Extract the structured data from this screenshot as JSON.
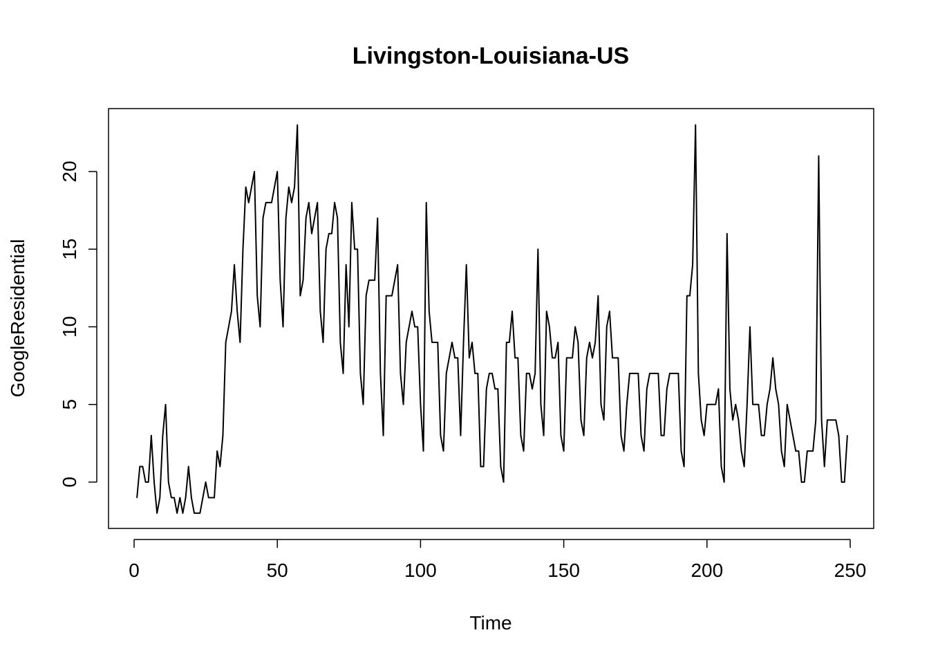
{
  "chart_data": {
    "type": "line",
    "title": "Livingston-Louisiana-US",
    "xlabel": "Time",
    "ylabel": "GoogleResidential",
    "xlim": [
      1,
      248
    ],
    "ylim": [
      -3,
      23
    ],
    "xticks": [
      0,
      50,
      100,
      150,
      200,
      250
    ],
    "yticks": [
      0,
      5,
      10,
      15,
      20
    ],
    "grid": false,
    "legend": "none",
    "line_color": "#000000",
    "series": [
      {
        "x_start": 1,
        "values": [
          -1,
          1,
          1,
          0,
          0,
          3,
          0,
          -2,
          -1,
          3,
          5,
          0,
          -1,
          -1,
          -2,
          -1,
          -2,
          -1,
          1,
          -1,
          -2,
          -2,
          -2,
          -1,
          0,
          -1,
          -1,
          -1,
          2,
          1,
          3,
          9,
          10,
          11,
          14,
          11,
          9,
          15,
          19,
          18,
          19,
          20,
          12,
          10,
          17,
          18,
          18,
          18,
          19,
          20,
          13,
          10,
          17,
          19,
          18,
          19,
          23,
          12,
          13,
          17,
          18,
          16,
          17,
          18,
          11,
          9,
          15,
          16,
          16,
          18,
          17,
          9,
          7,
          14,
          10,
          18,
          15,
          15,
          7,
          5,
          12,
          13,
          13,
          13,
          17,
          7,
          3,
          12,
          12,
          12,
          13,
          14,
          7,
          5,
          9,
          10,
          11,
          10,
          10,
          5,
          2,
          18,
          11,
          9,
          9,
          9,
          3,
          2,
          7,
          8,
          9,
          8,
          8,
          3,
          9,
          14,
          8,
          9,
          7,
          7,
          1,
          1,
          6,
          7,
          7,
          6,
          6,
          1,
          0,
          9,
          9,
          11,
          8,
          8,
          3,
          2,
          7,
          7,
          6,
          7,
          15,
          5,
          3,
          11,
          10,
          8,
          8,
          9,
          3,
          2,
          8,
          8,
          8,
          10,
          9,
          4,
          3,
          8,
          9,
          8,
          9,
          12,
          5,
          4,
          10,
          11,
          8,
          8,
          8,
          3,
          2,
          5,
          7,
          7,
          7,
          7,
          3,
          2,
          6,
          7,
          7,
          7,
          7,
          3,
          3,
          6,
          7,
          7,
          7,
          7,
          2,
          1,
          12,
          12,
          14,
          23,
          7,
          4,
          3,
          5,
          5,
          5,
          5,
          6,
          1,
          0,
          16,
          6,
          4,
          5,
          4,
          2,
          1,
          5,
          10,
          5,
          5,
          5,
          3,
          3,
          5,
          6,
          8,
          6,
          5,
          2,
          1,
          5,
          4,
          3,
          2,
          2,
          0,
          0,
          2,
          2,
          2,
          4,
          21,
          4,
          1,
          4,
          4,
          4,
          4,
          3,
          0,
          0,
          3
        ]
      }
    ]
  }
}
